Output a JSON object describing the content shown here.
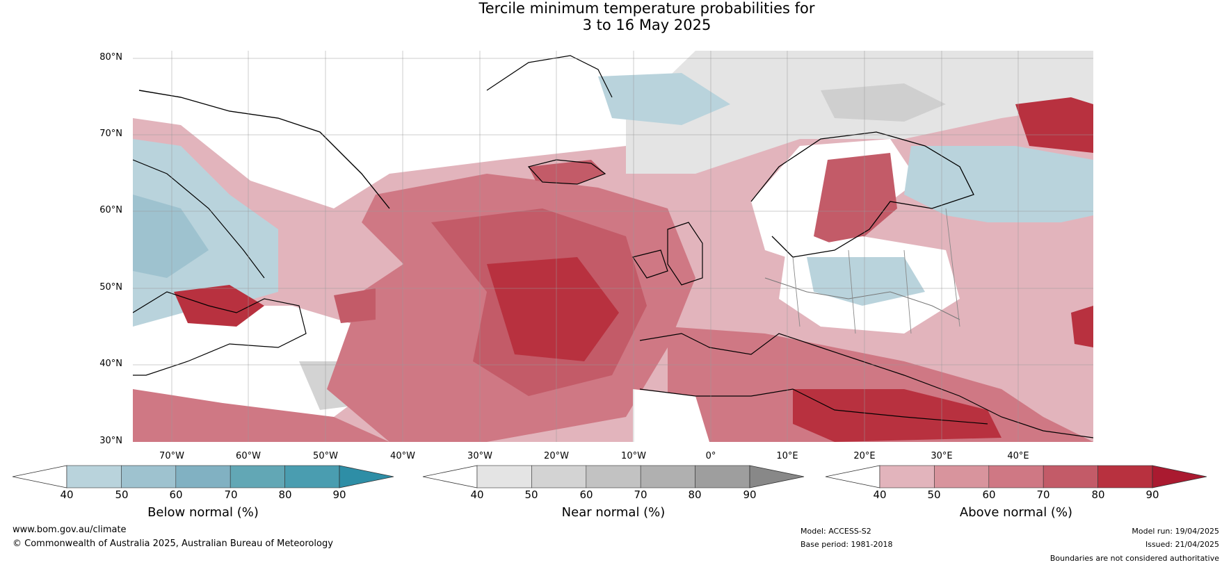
{
  "title_line1": "Tercile minimum temperature probabilities for",
  "title_line2": "3 to 16 May 2025",
  "lat_labels": [
    "80°N",
    "70°N",
    "60°N",
    "50°N",
    "40°N",
    "30°N"
  ],
  "lon_labels": [
    "70°W",
    "60°W",
    "50°W",
    "40°W",
    "30°W",
    "20°W",
    "10°W",
    "0°",
    "10°E",
    "20°E",
    "30°E",
    "40°E"
  ],
  "colorbars": [
    {
      "title": "Below normal (%)",
      "ticks": [
        "40",
        "50",
        "60",
        "70",
        "80",
        "90"
      ],
      "colors": [
        "#ffffff",
        "#b9d3dc",
        "#9ec2cf",
        "#81b1c2",
        "#62a7b5",
        "#4a9db0",
        "#2e8ea6"
      ]
    },
    {
      "title": "Near normal (%)",
      "ticks": [
        "40",
        "50",
        "60",
        "70",
        "80",
        "90"
      ],
      "colors": [
        "#ffffff",
        "#e4e4e4",
        "#d3d3d3",
        "#c2c2c2",
        "#b0b0b0",
        "#9e9e9e",
        "#888888"
      ]
    },
    {
      "title": "Above normal (%)",
      "ticks": [
        "40",
        "50",
        "60",
        "70",
        "80",
        "90"
      ],
      "colors": [
        "#ffffff",
        "#e2b4bc",
        "#d8949d",
        "#cf7884",
        "#c35b68",
        "#b8313f",
        "#aa1a30"
      ]
    }
  ],
  "footer": {
    "url": "www.bom.gov.au/climate",
    "copyright": "© Commonwealth of Australia 2025, Australian Bureau of Meteorology",
    "model": "Model: ACCESS-S2",
    "base_period": "Base period: 1981-2018",
    "model_run": "Model run: 19/04/2025",
    "issued": "Issued: 21/04/2025",
    "disclaimer": "Boundaries are not considered authoritative"
  }
}
